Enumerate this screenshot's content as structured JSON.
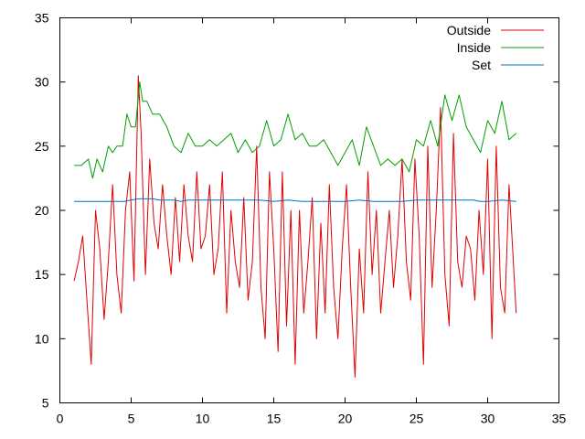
{
  "chart_data": {
    "type": "line",
    "xlim": [
      0,
      35
    ],
    "ylim": [
      5,
      35
    ],
    "xticks": [
      "0",
      "5",
      "10",
      "15",
      "20",
      "25",
      "30",
      "35"
    ],
    "yticks": [
      "5",
      "10",
      "15",
      "20",
      "25",
      "30",
      "35"
    ],
    "grid": false,
    "legend_position": "top-right",
    "series": [
      {
        "name": "Outside",
        "color": "#e00000",
        "x": [
          1.0,
          1.3,
          1.6,
          1.9,
          2.2,
          2.5,
          2.8,
          3.1,
          3.4,
          3.7,
          4.0,
          4.3,
          4.6,
          4.9,
          5.2,
          5.5,
          5.7,
          6.0,
          6.3,
          6.6,
          6.9,
          7.2,
          7.5,
          7.8,
          8.1,
          8.4,
          8.7,
          9.0,
          9.3,
          9.6,
          9.9,
          10.2,
          10.5,
          10.8,
          11.1,
          11.4,
          11.7,
          12.0,
          12.3,
          12.6,
          12.9,
          13.2,
          13.5,
          13.8,
          14.1,
          14.4,
          14.7,
          15.0,
          15.3,
          15.6,
          15.9,
          16.2,
          16.5,
          16.8,
          17.1,
          17.4,
          17.7,
          18.0,
          18.3,
          18.6,
          18.9,
          19.2,
          19.5,
          19.8,
          20.1,
          20.4,
          20.7,
          21.0,
          21.3,
          21.6,
          21.9,
          22.2,
          22.5,
          22.8,
          23.1,
          23.4,
          23.7,
          24.0,
          24.3,
          24.6,
          24.9,
          25.2,
          25.5,
          25.8,
          26.1,
          26.4,
          26.7,
          27.0,
          27.3,
          27.6,
          27.9,
          28.2,
          28.5,
          28.8,
          29.1,
          29.4,
          29.7,
          30.0,
          30.3,
          30.6,
          30.9,
          31.2,
          31.5,
          31.8,
          32.0
        ],
        "values": [
          14.5,
          16,
          18,
          13,
          8,
          20,
          17,
          11.5,
          16,
          22,
          15,
          12,
          20,
          23,
          14.5,
          30.5,
          26,
          15,
          24,
          19,
          17,
          22,
          18,
          15,
          21,
          16,
          22,
          18,
          16,
          23,
          17,
          18,
          22,
          15,
          17,
          23,
          12,
          20,
          16,
          14,
          21,
          13,
          16,
          25,
          14,
          10,
          23,
          17,
          9,
          23,
          11,
          20,
          8,
          20,
          12,
          16,
          21,
          10,
          19,
          12,
          22,
          14,
          10,
          17,
          22,
          14,
          7,
          17,
          12,
          23,
          15,
          20,
          12,
          16,
          20,
          14,
          18,
          24,
          16,
          13,
          24,
          18,
          8,
          25,
          14,
          20,
          28,
          15,
          11,
          26,
          16,
          14,
          18,
          17,
          13,
          20,
          15,
          24,
          10,
          25,
          14,
          12,
          22,
          16,
          12
        ],
        "stroke_width": 1
      },
      {
        "name": "Inside",
        "color": "#00a000",
        "x": [
          1.0,
          1.5,
          2.0,
          2.3,
          2.6,
          3.0,
          3.4,
          3.7,
          4.0,
          4.4,
          4.7,
          5.0,
          5.3,
          5.6,
          5.8,
          6.1,
          6.5,
          7.0,
          7.5,
          8.0,
          8.5,
          9.0,
          9.5,
          10.0,
          10.5,
          11.0,
          11.5,
          12.0,
          12.5,
          13.0,
          13.5,
          14.0,
          14.5,
          15.0,
          15.5,
          16.0,
          16.5,
          17.0,
          17.5,
          18.0,
          18.5,
          19.0,
          19.5,
          20.0,
          20.5,
          21.0,
          21.5,
          22.0,
          22.5,
          23.0,
          23.5,
          24.0,
          24.5,
          25.0,
          25.5,
          26.0,
          26.5,
          27.0,
          27.5,
          28.0,
          28.5,
          29.0,
          29.5,
          30.0,
          30.5,
          31.0,
          31.5,
          32.0
        ],
        "values": [
          23.5,
          23.5,
          24,
          22.5,
          24,
          23,
          25,
          24.5,
          25,
          25,
          27.5,
          26.5,
          26.5,
          30,
          28.5,
          28.5,
          27.5,
          27.5,
          26.5,
          25,
          24.5,
          26,
          25,
          25,
          25.5,
          25,
          25.5,
          26,
          24.5,
          25.5,
          24.5,
          25,
          27,
          25,
          25.5,
          27.5,
          25.5,
          26,
          25,
          25,
          25.5,
          24.5,
          23.5,
          24.5,
          25.5,
          23.5,
          26.5,
          25,
          23.5,
          24,
          23.5,
          24,
          23,
          25.5,
          25,
          27,
          25,
          29,
          27,
          29,
          26.5,
          25.5,
          24.5,
          27,
          26,
          28.5,
          25.5,
          26
        ],
        "stroke_width": 1
      },
      {
        "name": "Set",
        "color": "#0070c0",
        "x": [
          1.0,
          2.0,
          3.0,
          4.0,
          4.5,
          5.0,
          5.5,
          6.0,
          6.5,
          7.0,
          7.5,
          8.0,
          8.5,
          9.0,
          10.0,
          11.0,
          12.0,
          13.0,
          14.0,
          15.0,
          16.0,
          17.0,
          18.0,
          19.0,
          20.0,
          21.0,
          22.0,
          23.0,
          24.0,
          25.0,
          26.0,
          27.0,
          28.0,
          29.0,
          29.5,
          30.0,
          31.0,
          32.0
        ],
        "values": [
          20.7,
          20.7,
          20.7,
          20.7,
          20.7,
          20.8,
          20.9,
          20.9,
          20.9,
          20.8,
          20.8,
          20.8,
          20.7,
          20.8,
          20.8,
          20.8,
          20.8,
          20.8,
          20.8,
          20.7,
          20.8,
          20.7,
          20.7,
          20.7,
          20.7,
          20.8,
          20.7,
          20.7,
          20.7,
          20.8,
          20.8,
          20.8,
          20.8,
          20.8,
          20.7,
          20.7,
          20.8,
          20.7
        ],
        "stroke_width": 1
      }
    ]
  }
}
